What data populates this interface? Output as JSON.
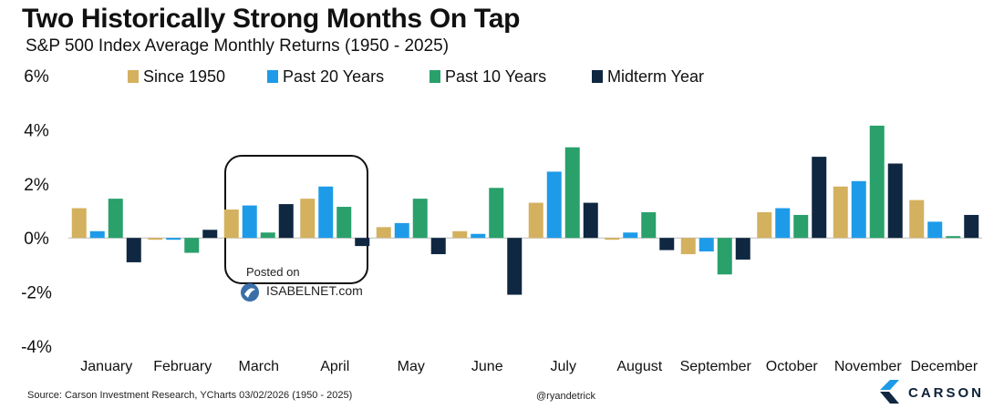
{
  "header": {
    "title": "Two Historically Strong Months On Tap",
    "subtitle": "S&P 500 Index Average Monthly Returns (1950 - 2025)"
  },
  "footer": {
    "source": "Source: Carson Investment Research, YCharts 03/02/2026 (1950 - 2025)",
    "handle": "@ryandetrick",
    "brand": "CARSON"
  },
  "watermark": {
    "posted": "Posted on",
    "site": "ISABELNET.com"
  },
  "chart_data": {
    "type": "bar",
    "title": "Two Historically Strong Months On Tap",
    "subtitle": "S&P 500 Index Average Monthly Returns (1950 - 2025)",
    "categories": [
      "January",
      "February",
      "March",
      "April",
      "May",
      "June",
      "July",
      "August",
      "September",
      "October",
      "November",
      "December"
    ],
    "series": [
      {
        "name": "Since 1950",
        "color": "#d4b15f",
        "values": [
          1.1,
          -0.05,
          1.05,
          1.45,
          0.4,
          0.25,
          1.3,
          -0.05,
          -0.6,
          0.95,
          1.9,
          1.4
        ]
      },
      {
        "name": "Past 20 Years",
        "color": "#1e9be8",
        "values": [
          0.25,
          -0.05,
          1.2,
          1.9,
          0.55,
          0.15,
          2.45,
          0.2,
          -0.5,
          1.1,
          2.1,
          0.6
        ]
      },
      {
        "name": "Past 10 Years",
        "color": "#2aa06b",
        "values": [
          1.45,
          -0.55,
          0.2,
          1.15,
          1.45,
          1.85,
          3.35,
          0.95,
          -1.35,
          0.85,
          4.15,
          0.05
        ]
      },
      {
        "name": "Midterm Year",
        "color": "#0f2741",
        "values": [
          -0.9,
          0.3,
          1.25,
          -0.3,
          -0.6,
          -2.1,
          1.3,
          -0.45,
          -0.8,
          3.0,
          2.75,
          0.85
        ]
      }
    ],
    "ylim": [
      -4,
      6
    ],
    "yticks": [
      "6%",
      "4%",
      "2%",
      "0%",
      "-2%",
      "-4%"
    ],
    "ytick_values": [
      6,
      4,
      2,
      0,
      -2,
      -4
    ],
    "legend": "top",
    "grid": false,
    "highlight": {
      "categories": [
        "March",
        "April"
      ],
      "style": "rounded box"
    }
  }
}
